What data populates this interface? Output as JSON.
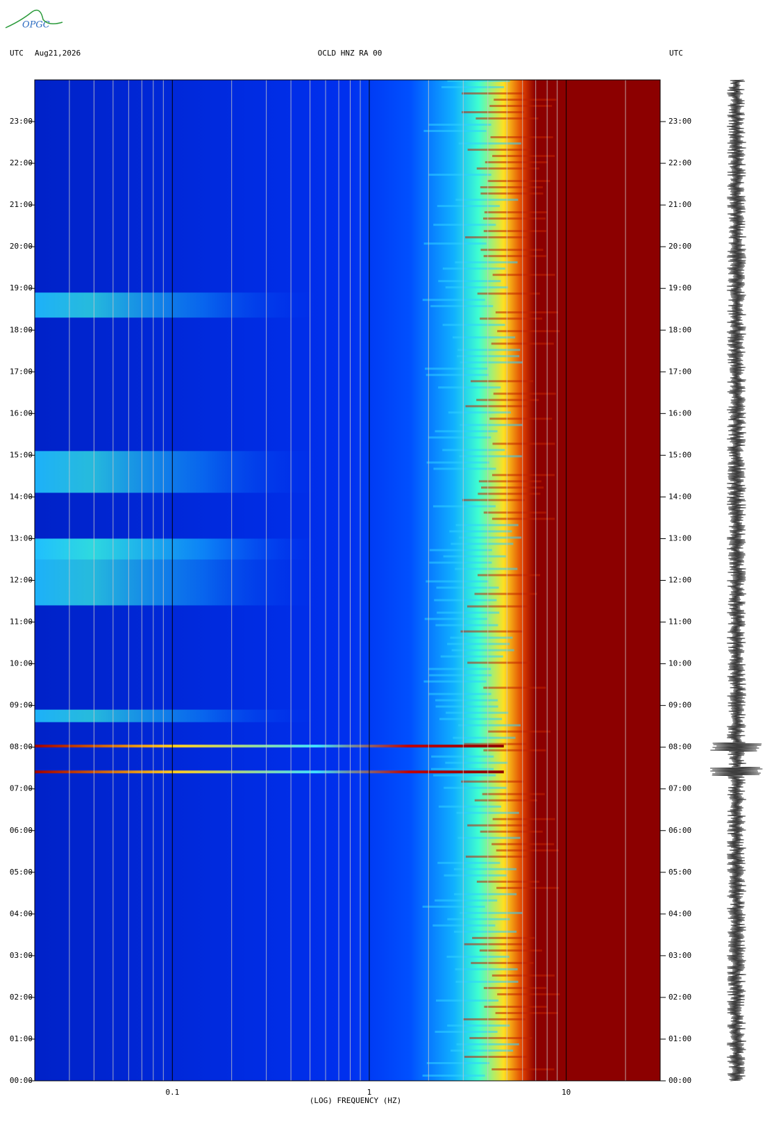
{
  "logo": "OPGC",
  "chart_data": {
    "type": "spectrogram",
    "title": "OCLD HNZ RA 00",
    "date": "Aug21,2026",
    "left_label": "UTC",
    "right_label": "UTC",
    "x_label": "(LOG) FREQUENCY (HZ)",
    "x_log": true,
    "xlim": [
      0.02,
      30
    ],
    "xticks": [
      0.1,
      1,
      10
    ],
    "xminorticks": [
      0.02,
      0.03,
      0.04,
      0.05,
      0.06,
      0.07,
      0.08,
      0.09,
      0.2,
      0.3,
      0.4,
      0.5,
      0.6,
      0.7,
      0.8,
      0.9,
      2,
      3,
      4,
      5,
      6,
      7,
      8,
      9,
      20
    ],
    "ylim": [
      0,
      24
    ],
    "yticks": [
      {
        "value": 0,
        "label": "00:00"
      },
      {
        "value": 1,
        "label": "01:00"
      },
      {
        "value": 2,
        "label": "02:00"
      },
      {
        "value": 3,
        "label": "03:00"
      },
      {
        "value": 4,
        "label": "04:00"
      },
      {
        "value": 5,
        "label": "05:00"
      },
      {
        "value": 6,
        "label": "06:00"
      },
      {
        "value": 7,
        "label": "07:00"
      },
      {
        "value": 8,
        "label": "08:00"
      },
      {
        "value": 9,
        "label": "09:00"
      },
      {
        "value": 10,
        "label": "10:00"
      },
      {
        "value": 11,
        "label": "11:00"
      },
      {
        "value": 12,
        "label": "12:00"
      },
      {
        "value": 13,
        "label": "13:00"
      },
      {
        "value": 14,
        "label": "14:00"
      },
      {
        "value": 15,
        "label": "15:00"
      },
      {
        "value": 16,
        "label": "16:00"
      },
      {
        "value": 17,
        "label": "17:00"
      },
      {
        "value": 18,
        "label": "18:00"
      },
      {
        "value": 19,
        "label": "19:00"
      },
      {
        "value": 20,
        "label": "20:00"
      },
      {
        "value": 21,
        "label": "21:00"
      },
      {
        "value": 22,
        "label": "22:00"
      },
      {
        "value": 23,
        "label": "23:00"
      }
    ]
  }
}
